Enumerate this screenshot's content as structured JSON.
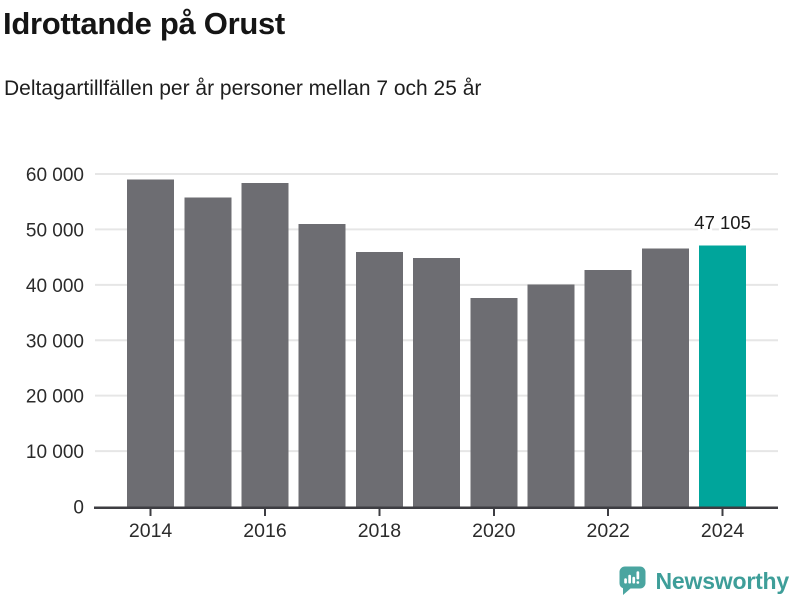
{
  "header": {
    "title": "Idrottande på Orust",
    "subtitle": "Deltagartillfällen per år personer mellan 7 och 25 år"
  },
  "chart_data": {
    "type": "bar",
    "title": "Idrottande på Orust",
    "subtitle": "Deltagartillfällen per år personer mellan 7 och 25 år",
    "categories": [
      "2014",
      "2015",
      "2016",
      "2017",
      "2018",
      "2019",
      "2020",
      "2021",
      "2022",
      "2023",
      "2024"
    ],
    "values": [
      59000,
      55800,
      58400,
      51000,
      45900,
      44800,
      37600,
      40100,
      42700,
      46600,
      47105
    ],
    "highlight_index": 10,
    "annotation": {
      "text": "47 105",
      "index": 10
    },
    "ylim": [
      0,
      60000
    ],
    "ytick_values": [
      0,
      10000,
      20000,
      30000,
      40000,
      50000,
      60000
    ],
    "ytick_labels": [
      "0",
      "10 000",
      "20 000",
      "30 000",
      "40 000",
      "50 000",
      "60 000"
    ],
    "xtick_labels": [
      "2014",
      "2016",
      "2018",
      "2020",
      "2022",
      "2024"
    ],
    "grid": true,
    "legend": "none",
    "colors": {
      "bar": "#6d6d72",
      "highlight": "#00a59b",
      "grid": "#e6e6e6",
      "axis": "#3d3d42",
      "tick_text": "#2b2b2b",
      "annotation_text": "#1a1a1a"
    }
  },
  "footer": {
    "brand": "Newsworthy",
    "brand_color": "#3e9e99",
    "icon": "newsworthy-speech-bubble-chart-icon",
    "icon_color": "#4aa5a0"
  }
}
